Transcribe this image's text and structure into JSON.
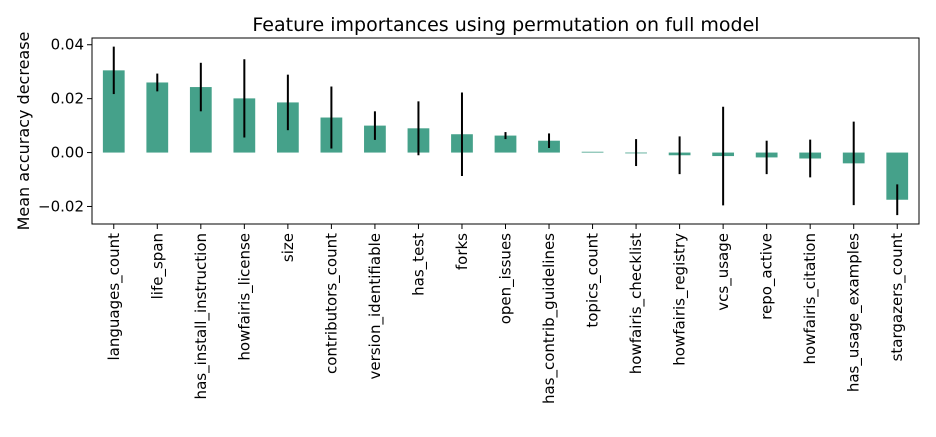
{
  "colors": {
    "bar": "#45a18a",
    "error_bar": "#000000",
    "axes": "#000000",
    "background": "#ffffff"
  },
  "chart_data": {
    "type": "bar",
    "title": "Feature importances using permutation on full model",
    "xlabel": "",
    "ylabel": "Mean accuracy decrease",
    "ylim": [
      -0.0265,
      0.0425
    ],
    "yticks": [
      -0.02,
      0.0,
      0.02,
      0.04
    ],
    "ytick_labels": [
      "−0.02",
      "0.00",
      "0.02",
      "0.04"
    ],
    "grid": false,
    "legend": "none",
    "categories": [
      "languages_count",
      "life_span",
      "has_install_instruction",
      "howfairis_license",
      "size",
      "contributors_count",
      "version_identifiable",
      "has_test",
      "forks",
      "open_issues",
      "has_contrib_guidelines",
      "topics_count",
      "howfairis_checklist",
      "howfairis_registry",
      "vcs_usage",
      "repo_active",
      "howfairis_citation",
      "has_usage_examples",
      "stargazers_count"
    ],
    "values": [
      0.0305,
      0.026,
      0.0243,
      0.0201,
      0.0186,
      0.013,
      0.01,
      0.009,
      0.0068,
      0.0063,
      0.0044,
      0.0003,
      0.0,
      -0.001,
      -0.0013,
      -0.0018,
      -0.0022,
      -0.004,
      -0.0175
    ],
    "errors": [
      0.0088,
      0.0033,
      0.009,
      0.0145,
      0.0103,
      0.0115,
      0.0053,
      0.01,
      0.0155,
      0.0013,
      0.0027,
      0.0,
      0.005,
      0.007,
      0.0183,
      0.0062,
      0.007,
      0.0155,
      0.0057
    ]
  }
}
